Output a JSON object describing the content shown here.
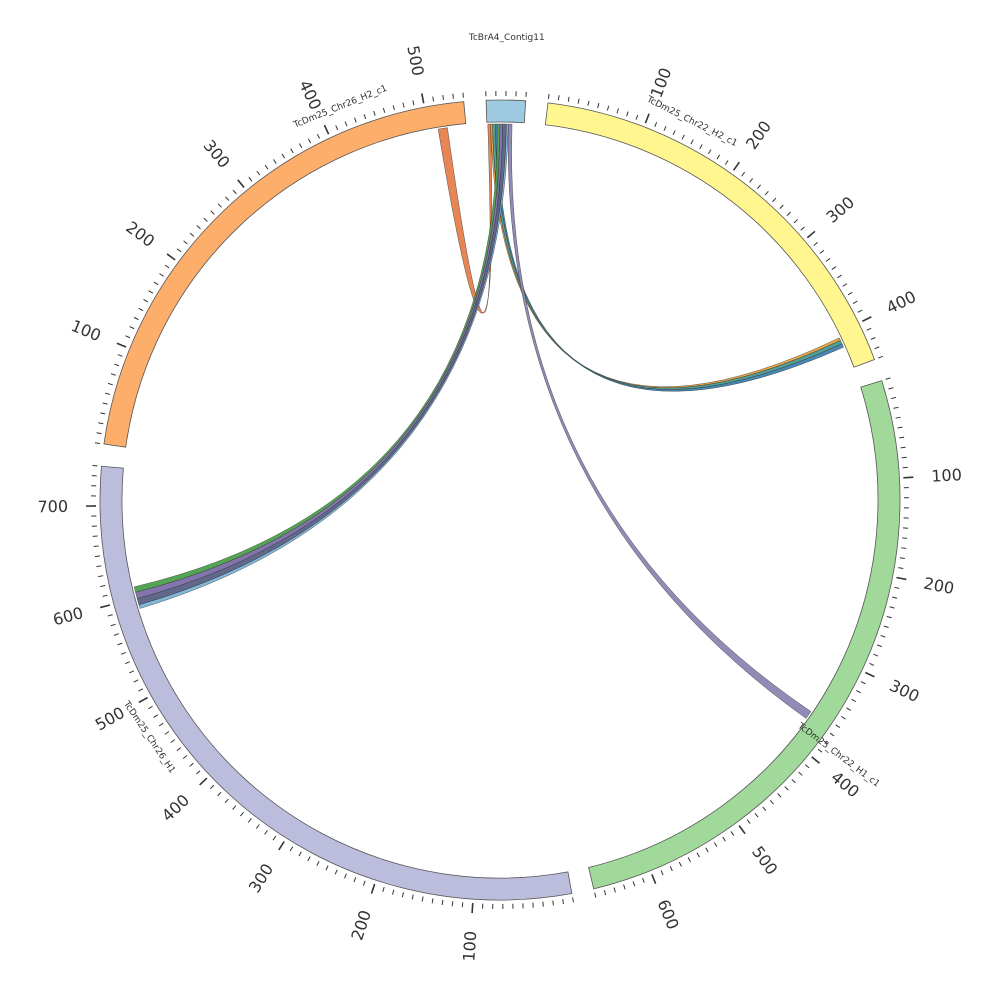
{
  "chart_data": {
    "type": "chord",
    "segments": [
      {
        "name": "TcBrA4_Contig11",
        "length": 40,
        "color": "#9ecae1",
        "ticks": []
      },
      {
        "name": "TcDm25_Chr22_H2_c1",
        "length": 440,
        "color": "#fff68f",
        "ticks": [
          100,
          200,
          300,
          400
        ]
      },
      {
        "name": "TcDm25_Chr22_H1_c1",
        "length": 660,
        "color": "#a1d99b",
        "ticks": [
          100,
          200,
          300,
          400,
          500,
          600
        ]
      },
      {
        "name": "TcDm25_Chr26_H1",
        "length": 740,
        "color": "#bcbddc",
        "ticks": [
          100,
          200,
          300,
          400,
          500,
          600,
          700
        ]
      },
      {
        "name": "TcDm25_Chr26_H2_c1",
        "length": 540,
        "color": "#fdae6b",
        "ticks": [
          100,
          200,
          300,
          400,
          500
        ]
      }
    ],
    "links": [
      {
        "from": "TcBrA4_Contig11",
        "from_range": [
          1,
          4
        ],
        "to": "TcDm25_Chr26_H2_c1",
        "to_range": [
          510,
          520
        ],
        "color": "#e6804b"
      },
      {
        "from": "TcBrA4_Contig11",
        "from_range": [
          4,
          6
        ],
        "to": "TcDm25_Chr22_H2_c1",
        "to_range": [
          405,
          408
        ],
        "color": "#e6a040"
      },
      {
        "from": "TcBrA4_Contig11",
        "from_range": [
          6,
          9
        ],
        "to": "TcDm25_Chr22_H2_c1",
        "to_range": [
          408,
          412
        ],
        "color": "#4a9a8e"
      },
      {
        "from": "TcBrA4_Contig11",
        "from_range": [
          9,
          11
        ],
        "to": "TcDm25_Chr22_H2_c1",
        "to_range": [
          412,
          416
        ],
        "color": "#3d83b0"
      },
      {
        "from": "TcBrA4_Contig11",
        "from_range": [
          11,
          14
        ],
        "to": "TcDm25_Chr26_H1",
        "to_range": [
          606,
          612
        ],
        "color": "#4aa04a"
      },
      {
        "from": "TcBrA4_Contig11",
        "from_range": [
          14,
          17
        ],
        "to": "TcDm25_Chr26_H1",
        "to_range": [
          599,
          606
        ],
        "color": "#7a6ea8"
      },
      {
        "from": "TcBrA4_Contig11",
        "from_range": [
          17,
          21
        ],
        "to": "TcDm25_Chr26_H1",
        "to_range": [
          592,
          599
        ],
        "color": "#5a5f86"
      },
      {
        "from": "TcBrA4_Contig11",
        "from_range": [
          21,
          23
        ],
        "to": "TcDm25_Chr26_H1",
        "to_range": [
          588,
          592
        ],
        "color": "#7ab4d8"
      },
      {
        "from": "TcBrA4_Contig11",
        "from_range": [
          23,
          27
        ],
        "to": "TcDm25_Chr22_H1_c1",
        "to_range": [
          363,
          372
        ],
        "color": "#8b86b2"
      }
    ]
  }
}
